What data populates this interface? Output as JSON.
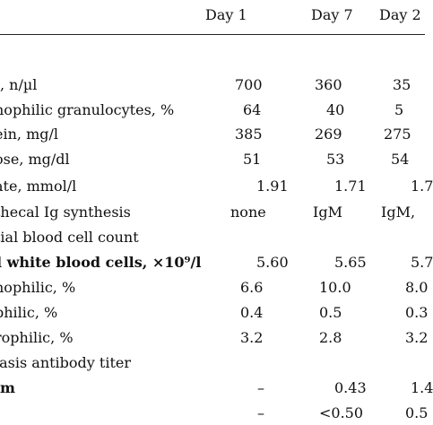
{
  "headers": [
    "Day 1",
    "Day 7",
    "Day 2"
  ],
  "rows": [
    {
      "label": ", n/µl",
      "d1": "700",
      "d7": "360",
      "d2": "35"
    },
    {
      "label": "nophilic granulocytes, %",
      "d1": "64",
      "d7": "40",
      "d2": "5"
    },
    {
      "label": "ein, mg/l",
      "d1": "385",
      "d7": "269",
      "d2": "275"
    },
    {
      "label": "ose, mg/dl",
      "d1": "51",
      "d7": "53",
      "d2": "54"
    },
    {
      "label": "ate, mmol/l",
      "d1": "1.91",
      "d7": "1.71",
      "d2": "1.7"
    },
    {
      "label": "thecal Ig synthesis",
      "d1": "none",
      "d7": "IgM",
      "d2": "IgM,"
    },
    {
      "label": "tial blood cell count",
      "d1": "",
      "d7": "",
      "d2": ""
    },
    {
      "label": "l white blood cells, ×10⁹/l",
      "d1": "5.60",
      "d7": "5.65",
      "d2": "5.7"
    },
    {
      "label": "nophilic, %",
      "d1": "6.6",
      "d7": "10.0",
      "d2": "8.0"
    },
    {
      "label": "philic, %",
      "d1": "0.4",
      "d7": "0.5",
      "d2": "0.3"
    },
    {
      "label": "rophilic, %",
      "d1": "3.2",
      "d7": "2.8",
      "d2": "3.2"
    },
    {
      "label": "iasis antibody titer",
      "d1": "",
      "d7": "",
      "d2": ""
    },
    {
      "label": "m",
      "d1": "–",
      "d7": "0.43",
      "d2": "1.4"
    },
    {
      "label": "",
      "d1": "–",
      "d7": "<0.50",
      "d2": "0.5"
    }
  ]
}
